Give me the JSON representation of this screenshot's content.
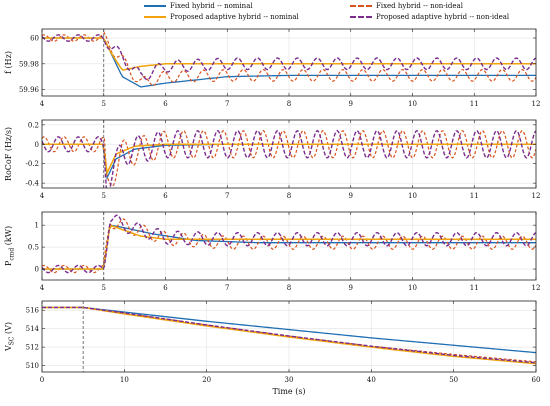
{
  "legend": {
    "items": [
      {
        "label": "Fixed hybrid -- nominal",
        "color": "#1f6fb4",
        "dash": "solid"
      },
      {
        "label": "Fixed hybrid -- non-ideal",
        "color": "#d9531e",
        "dash": "dashed"
      },
      {
        "label": "Proposed adaptive hybrid -- nominal",
        "color": "#f0a30a",
        "dash": "solid"
      },
      {
        "label": "Proposed adaptive hybrid -- non-ideal",
        "color": "#7b2d8e",
        "dash": "dashed"
      }
    ]
  },
  "colors": {
    "fixed_nominal": "#1f6fb4",
    "fixed_nonideal": "#d9531e",
    "adaptive_nominal": "#f0a30a",
    "adaptive_nonideal": "#7b2d8e",
    "event_marker": "#555555"
  },
  "chart_data": [
    {
      "type": "line",
      "ylabel": "f (Hz)",
      "xlim": [
        4,
        12
      ],
      "ylim": [
        59.955,
        60.007
      ],
      "xticks": [
        4,
        5,
        6,
        7,
        8,
        9,
        10,
        11,
        12
      ],
      "yticks": [
        59.96,
        59.98,
        60
      ],
      "ytick_labels": [
        "59.96",
        "59.98",
        "60"
      ],
      "event_time": 5,
      "series": [
        {
          "name": "Fixed hybrid -- nominal",
          "x": [
            4,
            5,
            5.1,
            5.3,
            5.6,
            6,
            7,
            8,
            12
          ],
          "y": [
            60.0,
            60.0,
            59.99,
            59.97,
            59.962,
            59.965,
            59.97,
            59.971,
            59.971
          ]
        },
        {
          "name": "Fixed hybrid -- non-ideal",
          "x": [
            4,
            5,
            5.6,
            6,
            7,
            12
          ],
          "y": [
            60.0,
            60.0,
            59.965,
            59.97,
            59.971,
            59.971
          ],
          "oscillation": 0.0045
        },
        {
          "name": "Proposed adaptive hybrid -- nominal",
          "x": [
            4,
            5,
            5.1,
            5.3,
            5.6,
            6,
            7,
            12
          ],
          "y": [
            60.0,
            60.0,
            59.99,
            59.975,
            59.978,
            59.98,
            59.98,
            59.98
          ]
        },
        {
          "name": "Proposed adaptive hybrid -- non-ideal",
          "x": [
            4,
            5,
            5.6,
            6,
            7,
            12
          ],
          "y": [
            60.0,
            60.0,
            59.97,
            59.978,
            59.98,
            59.98
          ],
          "oscillation": 0.0045
        }
      ]
    },
    {
      "type": "line",
      "ylabel": "RoCoF (Hz/s)",
      "xlim": [
        4,
        12
      ],
      "ylim": [
        -0.45,
        0.25
      ],
      "xticks": [
        4,
        5,
        6,
        7,
        8,
        9,
        10,
        11,
        12
      ],
      "yticks": [
        -0.4,
        -0.2,
        0,
        0.2
      ],
      "ytick_labels": [
        "-0.4",
        "-0.2",
        "0",
        "0.2"
      ],
      "event_time": 5,
      "series": [
        {
          "name": "Fixed hybrid -- nominal",
          "x": [
            4,
            5,
            5.05,
            5.2,
            5.5,
            6,
            7,
            12
          ],
          "y": [
            0,
            0,
            -0.35,
            -0.15,
            -0.05,
            -0.01,
            0,
            0
          ]
        },
        {
          "name": "Fixed hybrid -- non-ideal",
          "x": [
            4,
            5,
            5.05,
            5.3,
            6,
            12
          ],
          "y": [
            0,
            0,
            -0.42,
            -0.1,
            0,
            0
          ],
          "oscillation": 0.14
        },
        {
          "name": "Proposed adaptive hybrid -- nominal",
          "x": [
            4,
            5,
            5.05,
            5.2,
            5.5,
            6,
            12
          ],
          "y": [
            0,
            0,
            -0.3,
            -0.1,
            -0.02,
            0,
            0
          ]
        },
        {
          "name": "Proposed adaptive hybrid -- non-ideal",
          "x": [
            4,
            5,
            5.05,
            5.3,
            6,
            12
          ],
          "y": [
            0,
            0,
            -0.4,
            -0.08,
            0,
            0
          ],
          "oscillation": 0.14
        }
      ]
    },
    {
      "type": "line",
      "ylabel": "P_cmd (kW)",
      "ylabel_main": "P",
      "ylabel_sub": "cmd",
      "ylabel_unit": " (kW)",
      "xlim": [
        4,
        12
      ],
      "ylim": [
        -0.25,
        1.3
      ],
      "xticks": [
        4,
        5,
        6,
        7,
        8,
        9,
        10,
        11,
        12
      ],
      "yticks": [
        0,
        0.5,
        1
      ],
      "ytick_labels": [
        "0",
        "0.5",
        "1"
      ],
      "event_time": 5,
      "series": [
        {
          "name": "Fixed hybrid -- nominal",
          "x": [
            4,
            5,
            5.1,
            5.3,
            5.8,
            6.5,
            7.5,
            12
          ],
          "y": [
            0,
            0,
            1.0,
            0.95,
            0.8,
            0.65,
            0.6,
            0.6
          ]
        },
        {
          "name": "Fixed hybrid -- non-ideal",
          "x": [
            4,
            5,
            5.1,
            5.3,
            6,
            7,
            12
          ],
          "y": [
            0,
            0,
            1.1,
            1.0,
            0.7,
            0.6,
            0.6
          ],
          "oscillation": 0.15
        },
        {
          "name": "Proposed adaptive hybrid -- nominal",
          "x": [
            4,
            5,
            5.1,
            5.3,
            5.6,
            6,
            7,
            12
          ],
          "y": [
            0,
            0,
            1.0,
            0.9,
            0.75,
            0.68,
            0.68,
            0.68
          ]
        },
        {
          "name": "Proposed adaptive hybrid -- non-ideal",
          "x": [
            4,
            5,
            5.1,
            5.3,
            6,
            7,
            12
          ],
          "y": [
            0,
            0,
            1.2,
            1.0,
            0.72,
            0.68,
            0.68
          ],
          "oscillation": 0.15
        }
      ]
    },
    {
      "type": "line",
      "ylabel": "V_SC (V)",
      "ylabel_main": "V",
      "ylabel_sub": "SC",
      "ylabel_unit": " (V)",
      "xlabel": "Time (s)",
      "xlim": [
        0,
        60
      ],
      "ylim": [
        509.3,
        517.0
      ],
      "xticks": [
        0,
        10,
        20,
        30,
        40,
        50,
        60
      ],
      "yticks": [
        510,
        512,
        514,
        516
      ],
      "ytick_labels": [
        "510",
        "512",
        "514",
        "516"
      ],
      "event_time": 5,
      "series": [
        {
          "name": "Fixed hybrid -- nominal",
          "x": [
            0,
            5,
            10,
            20,
            30,
            40,
            50,
            60
          ],
          "y": [
            516.3,
            516.3,
            515.8,
            514.8,
            513.9,
            513.0,
            512.2,
            511.4
          ]
        },
        {
          "name": "Fixed hybrid -- non-ideal",
          "x": [
            0,
            5,
            10,
            20,
            30,
            40,
            50,
            60
          ],
          "y": [
            516.3,
            516.3,
            515.7,
            514.4,
            513.2,
            512.1,
            511.2,
            510.4
          ]
        },
        {
          "name": "Proposed adaptive hybrid -- nominal",
          "x": [
            0,
            5,
            10,
            20,
            30,
            40,
            50,
            60
          ],
          "y": [
            516.3,
            516.3,
            515.6,
            514.3,
            513.1,
            512.0,
            511.0,
            510.2
          ]
        },
        {
          "name": "Proposed adaptive hybrid -- non-ideal",
          "x": [
            0,
            5,
            10,
            20,
            30,
            40,
            50,
            60
          ],
          "y": [
            516.3,
            516.3,
            515.7,
            514.4,
            513.2,
            512.1,
            511.1,
            510.3
          ]
        }
      ]
    }
  ]
}
